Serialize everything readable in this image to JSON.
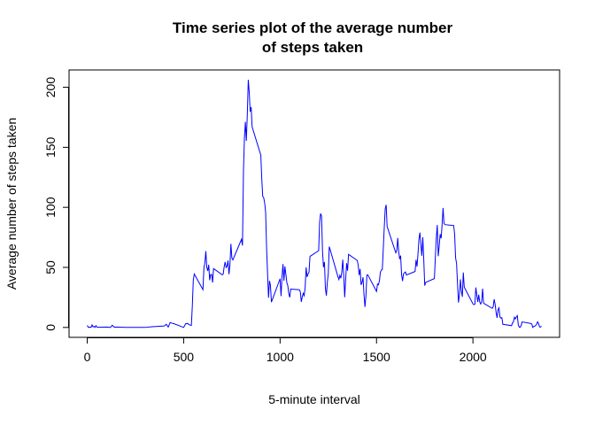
{
  "chart_data": {
    "type": "line",
    "title": [
      "Time series plot of the average number",
      "of steps taken"
    ],
    "x_label": "5-minute interval",
    "y_label": "Average number of steps taken",
    "x": [
      0,
      5,
      10,
      15,
      20,
      25,
      30,
      35,
      40,
      45,
      50,
      55,
      100,
      110,
      120,
      130,
      140,
      150,
      200,
      230,
      300,
      330,
      400,
      410,
      420,
      430,
      440,
      450,
      500,
      510,
      520,
      530,
      540,
      545,
      550,
      555,
      600,
      605,
      610,
      615,
      620,
      625,
      630,
      635,
      640,
      645,
      650,
      655,
      700,
      705,
      710,
      715,
      720,
      725,
      730,
      735,
      740,
      745,
      750,
      755,
      800,
      805,
      810,
      815,
      820,
      825,
      830,
      835,
      840,
      845,
      850,
      855,
      900,
      905,
      910,
      915,
      920,
      925,
      930,
      935,
      940,
      945,
      950,
      955,
      1000,
      1005,
      1010,
      1015,
      1020,
      1025,
      1030,
      1035,
      1040,
      1045,
      1050,
      1055,
      1100,
      1105,
      1110,
      1115,
      1120,
      1125,
      1130,
      1135,
      1140,
      1145,
      1150,
      1155,
      1200,
      1205,
      1210,
      1215,
      1220,
      1225,
      1230,
      1235,
      1240,
      1245,
      1250,
      1255,
      1300,
      1305,
      1310,
      1315,
      1320,
      1325,
      1330,
      1335,
      1340,
      1345,
      1350,
      1355,
      1400,
      1405,
      1410,
      1415,
      1420,
      1425,
      1430,
      1435,
      1440,
      1445,
      1450,
      1455,
      1500,
      1505,
      1510,
      1515,
      1520,
      1525,
      1530,
      1535,
      1540,
      1545,
      1550,
      1555,
      1600,
      1605,
      1610,
      1615,
      1620,
      1625,
      1630,
      1635,
      1640,
      1645,
      1650,
      1655,
      1700,
      1705,
      1710,
      1715,
      1720,
      1725,
      1730,
      1735,
      1740,
      1745,
      1750,
      1755,
      1800,
      1805,
      1810,
      1815,
      1820,
      1825,
      1830,
      1835,
      1840,
      1845,
      1850,
      1855,
      1900,
      1905,
      1910,
      1915,
      1920,
      1925,
      1930,
      1935,
      1940,
      1945,
      1950,
      1955,
      2000,
      2005,
      2010,
      2015,
      2020,
      2025,
      2030,
      2035,
      2040,
      2045,
      2050,
      2055,
      2100,
      2105,
      2110,
      2115,
      2120,
      2125,
      2130,
      2135,
      2140,
      2145,
      2150,
      2155,
      2200,
      2205,
      2210,
      2215,
      2220,
      2225,
      2230,
      2235,
      2240,
      2245,
      2250,
      2255,
      2300,
      2305,
      2310,
      2315,
      2320,
      2325,
      2330,
      2335,
      2340,
      2345,
      2350,
      2355
    ],
    "series": [
      {
        "color": "#0000ff",
        "values": [
          1.7,
          0.3,
          0.1,
          0.2,
          0.1,
          2.1,
          0.5,
          0.9,
          0,
          1.5,
          0.3,
          0.1,
          0.3,
          0.2,
          0,
          1.8,
          0.2,
          0.3,
          0,
          0,
          0,
          0.5,
          1.2,
          2.6,
          0.3,
          4.1,
          3.5,
          3.1,
          0,
          3,
          3.3,
          2.1,
          1.7,
          18,
          39.5,
          44.5,
          31.5,
          49.3,
          53.8,
          63.5,
          50,
          47.1,
          52.2,
          39.3,
          44,
          44.2,
          37.4,
          49,
          43.8,
          44.4,
          50.5,
          54.5,
          49.9,
          51,
          55.7,
          44.3,
          52.3,
          69.6,
          57.8,
          56.2,
          73.4,
          68.2,
          129.4,
          157.5,
          171.2,
          155.4,
          177.3,
          206.2,
          195.9,
          179.6,
          183.4,
          167,
          143.5,
          124,
          109.1,
          108.1,
          103.7,
          96,
          66.2,
          45.2,
          24.8,
          38.8,
          35,
          21.1,
          40.6,
          26.1,
          42.4,
          52.7,
          38.9,
          50.8,
          44.3,
          37.4,
          34.7,
          28.3,
          25.1,
          31.9,
          31.4,
          29.7,
          21.3,
          25.5,
          28.4,
          26.5,
          33.4,
          50,
          42,
          44.6,
          46,
          59.2,
          63.9,
          87.7,
          94.8,
          92.8,
          63.4,
          50.2,
          54.5,
          32.4,
          26.5,
          37.7,
          45.1,
          67.3,
          42.3,
          39.9,
          43.3,
          41,
          46.2,
          56.4,
          42.8,
          25.1,
          40,
          53.5,
          47.3,
          60.8,
          55.8,
          52,
          43.6,
          48.7,
          35.5,
          37.5,
          41.8,
          27.5,
          17.1,
          26.1,
          43.6,
          43.8,
          30,
          36.1,
          35.5,
          38.8,
          46,
          47.8,
          48.1,
          65.3,
          82.9,
          98.7,
          102.1,
          84,
          62.1,
          64.1,
          74.5,
          63.2,
          56.9,
          59.8,
          43.9,
          38.6,
          44.7,
          45.5,
          46.2,
          43.7,
          46.6,
          56.3,
          50.7,
          61.2,
          73.4,
          79,
          68.9,
          59.7,
          75.1,
          56.5,
          34.8,
          37.5,
          40.7,
          58,
          74.7,
          85.3,
          59.3,
          67.8,
          77.7,
          74.2,
          85.3,
          99.5,
          86.6,
          85.6,
          84.9,
          77.8,
          58,
          53.4,
          36.3,
          20.7,
          27.4,
          40,
          30.2,
          25.5,
          45.7,
          33.5,
          19.6,
          19,
          19.3,
          33.3,
          26.8,
          21.2,
          27.3,
          21.3,
          19.5,
          21.3,
          32.3,
          20.2,
          15.9,
          17.2,
          23.5,
          19.2,
          12.5,
          8,
          14.7,
          16.3,
          8.7,
          7.8,
          8.1,
          2.6,
          1.5,
          3.7,
          4.8,
          8.5,
          7.1,
          8.7,
          9.8,
          2.2,
          0.3,
          0.1,
          1.6,
          4.6,
          3.3,
          2.8,
          0,
          0.8,
          1,
          1.6,
          2.6,
          4.7,
          3.3,
          0.6,
          0.2,
          1.1
        ]
      }
    ],
    "xlim": [
      -94.2,
      2449.2
    ],
    "xticks": [
      0,
      500,
      1000,
      1500,
      2000
    ],
    "ylim": [
      -8.25,
      214.42
    ],
    "yticks": [
      0,
      50,
      100,
      150,
      200
    ],
    "grid": false
  }
}
